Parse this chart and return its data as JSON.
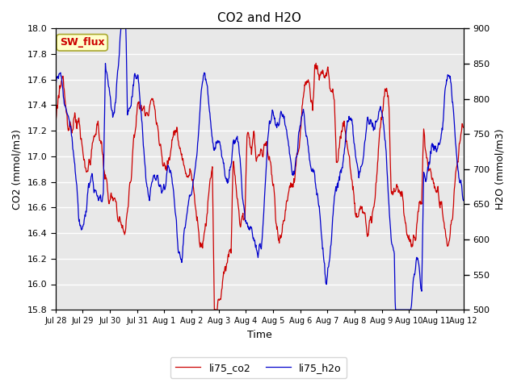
{
  "title": "CO2 and H2O",
  "xlabel": "Time",
  "ylabel_left": "CO2 (mmol/m3)",
  "ylabel_right": "H2O (mmol/m3)",
  "ylim_left": [
    15.8,
    18.0
  ],
  "ylim_right": [
    500,
    900
  ],
  "yticks_left": [
    15.8,
    16.0,
    16.2,
    16.4,
    16.6,
    16.8,
    17.0,
    17.2,
    17.4,
    17.6,
    17.8,
    18.0
  ],
  "yticks_right": [
    500,
    550,
    600,
    650,
    700,
    750,
    800,
    850,
    900
  ],
  "color_co2": "#cc0000",
  "color_h2o": "#0000cc",
  "legend_entries": [
    "li75_co2",
    "li75_h2o"
  ],
  "annotation_text": "SW_flux",
  "annotation_color": "#cc0000",
  "annotation_bg": "#ffffcc",
  "fig_bg": "#ffffff",
  "plot_bg": "#e8e8e8",
  "grid_color": "#ffffff",
  "xtick_labels": [
    "Jul 28",
    "Jul 29",
    "Jul 30",
    "Jul 31",
    "Aug 1",
    "Aug 2",
    "Aug 3",
    "Aug 4",
    "Aug 5",
    "Aug 6",
    "Aug 7",
    "Aug 8",
    "Aug 9",
    "Aug 10",
    "Aug 11",
    "Aug 12"
  ],
  "n_points": 1000
}
